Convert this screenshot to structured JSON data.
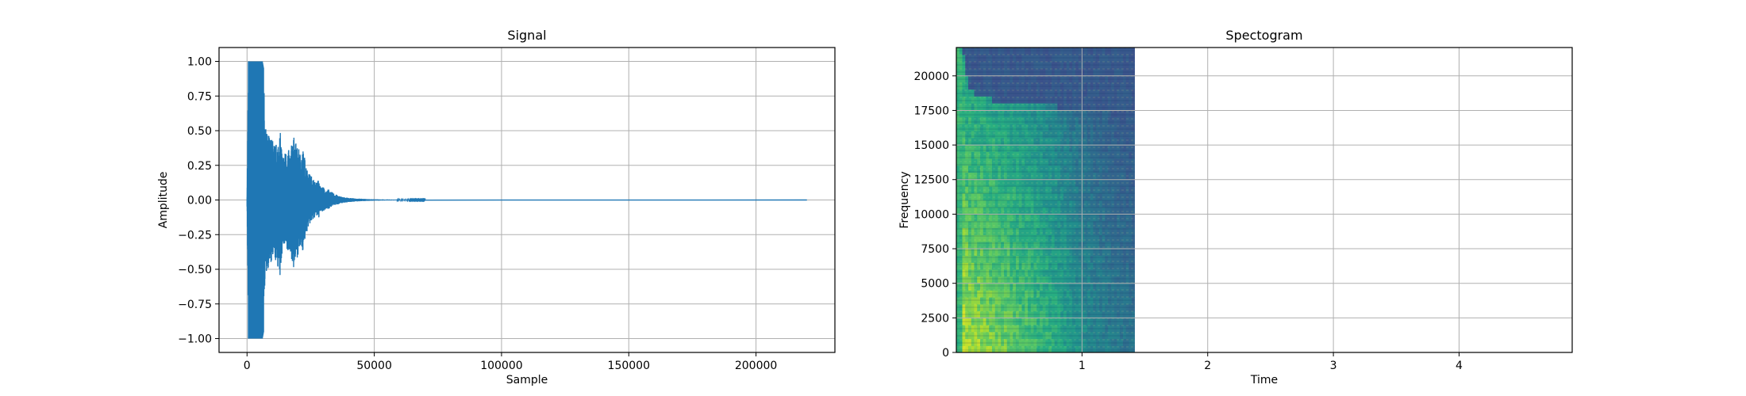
{
  "chart_data": [
    {
      "type": "line",
      "title": "Signal",
      "xlabel": "Sample",
      "ylabel": "Amplitude",
      "xlim": [
        -11000,
        231000
      ],
      "ylim": [
        -1.1,
        1.1
      ],
      "xticks": [
        0,
        50000,
        100000,
        150000,
        200000
      ],
      "yticks": [
        -1.0,
        -0.75,
        -0.5,
        -0.25,
        0.0,
        0.25,
        0.5,
        0.75,
        1.0
      ],
      "grid": true,
      "color": "#1f77b4",
      "series": [
        {
          "x": [
            0,
            500,
            1000,
            1500,
            2000,
            2500,
            3000,
            3500,
            4000,
            4500,
            5000,
            5500,
            6000,
            6500,
            7000,
            7500,
            8000,
            9000,
            10000,
            11000,
            12000,
            13000,
            14000,
            15000,
            16000,
            17000,
            18000,
            19000,
            20000,
            21000,
            22000,
            23000,
            24000,
            25000,
            26000,
            27000,
            28000,
            29000,
            30000,
            31000,
            32000,
            33000,
            34000,
            35000,
            36000,
            37000,
            38000,
            40000,
            42000,
            44000,
            46000,
            48000,
            50000,
            55000,
            60000,
            70000,
            100000,
            150000,
            200000,
            220000
          ],
          "envelope_high": [
            0.05,
            1.0,
            1.0,
            1.0,
            1.0,
            1.0,
            1.0,
            1.0,
            1.0,
            1.0,
            1.0,
            1.0,
            1.0,
            0.95,
            0.55,
            0.5,
            0.48,
            0.47,
            0.44,
            0.4,
            0.42,
            0.5,
            0.32,
            0.35,
            0.38,
            0.33,
            0.48,
            0.42,
            0.38,
            0.34,
            0.37,
            0.28,
            0.2,
            0.18,
            0.16,
            0.12,
            0.15,
            0.09,
            0.1,
            0.06,
            0.08,
            0.06,
            0.05,
            0.04,
            0.03,
            0.025,
            0.02,
            0.015,
            0.012,
            0.01,
            0.008,
            0.006,
            0.005,
            0.003,
            0.002,
            0.001,
            0.0,
            0.0,
            0.0,
            0.0
          ],
          "envelope_low": [
            -0.05,
            -1.0,
            -1.0,
            -1.0,
            -1.0,
            -1.0,
            -1.0,
            -1.0,
            -1.0,
            -1.0,
            -1.0,
            -1.0,
            -1.0,
            -0.95,
            -0.6,
            -0.55,
            -0.5,
            -0.48,
            -0.46,
            -0.44,
            -0.48,
            -0.58,
            -0.33,
            -0.38,
            -0.4,
            -0.36,
            -0.52,
            -0.46,
            -0.4,
            -0.36,
            -0.37,
            -0.27,
            -0.2,
            -0.17,
            -0.15,
            -0.11,
            -0.14,
            -0.08,
            -0.09,
            -0.06,
            -0.07,
            -0.05,
            -0.04,
            -0.035,
            -0.03,
            -0.025,
            -0.02,
            -0.015,
            -0.012,
            -0.01,
            -0.008,
            -0.006,
            -0.005,
            -0.003,
            -0.002,
            -0.001,
            0.0,
            0.0,
            0.0,
            0.0
          ]
        }
      ]
    },
    {
      "type": "heatmap",
      "title": "Spectogram",
      "xlabel": "Time",
      "ylabel": "Frequency",
      "xlim": [
        0,
        4.9
      ],
      "ylim": [
        0,
        22050
      ],
      "xticks": [
        1,
        2,
        3,
        4
      ],
      "yticks": [
        0,
        2500,
        5000,
        7500,
        10000,
        12500,
        15000,
        17500,
        20000
      ],
      "grid": true,
      "colormap": "viridis",
      "data_extent_time": [
        0,
        1.42
      ],
      "energy_profile": {
        "time": [
          0,
          0.05,
          0.1,
          0.2,
          0.4,
          0.6,
          0.8,
          1.0,
          1.2,
          1.42
        ],
        "high_freq_cutoff": [
          22050,
          22050,
          19000,
          18500,
          18000,
          18000,
          17800,
          17500,
          17300,
          17200
        ],
        "level": [
          0.55,
          0.95,
          0.9,
          0.88,
          0.82,
          0.75,
          0.65,
          0.52,
          0.45,
          0.4
        ]
      }
    }
  ]
}
